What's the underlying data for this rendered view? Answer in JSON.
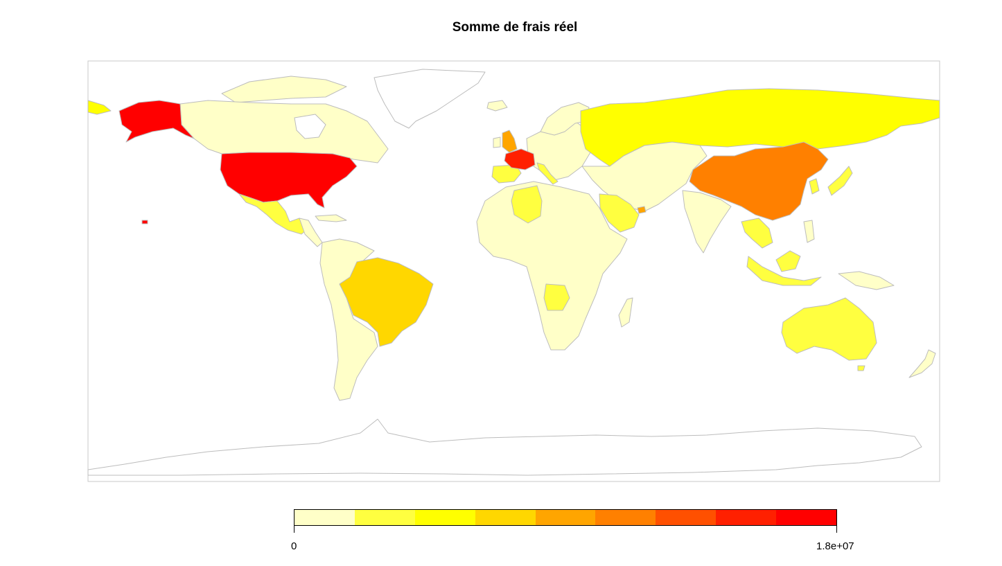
{
  "title": "Somme de frais réel",
  "legend": {
    "min_label": "0",
    "max_label": "1.8e+07",
    "colors": [
      "#FFFFC8",
      "#FFFF40",
      "#FFFF00",
      "#FFD700",
      "#FFA500",
      "#FF8000",
      "#FF5000",
      "#FF2000",
      "#FF0000"
    ]
  },
  "chart_data": {
    "type": "choropleth",
    "title": "Somme de frais réel",
    "value_range": [
      0,
      18000000
    ],
    "legend_placement": "bottom",
    "regions": [
      {
        "region": "United States",
        "bin": 8
      },
      {
        "region": "France",
        "bin": 7
      },
      {
        "region": "China",
        "bin": 5
      },
      {
        "region": "United Kingdom",
        "bin": 4
      },
      {
        "region": "Brazil",
        "bin": 3
      },
      {
        "region": "Russia",
        "bin": 2
      },
      {
        "region": "Mexico",
        "bin": 1
      },
      {
        "region": "Australia",
        "bin": 1
      },
      {
        "region": "Algeria",
        "bin": 1
      },
      {
        "region": "Saudi Arabia",
        "bin": 1
      },
      {
        "region": "United Arab Emirates",
        "bin": 4
      },
      {
        "region": "Canada",
        "bin": 0
      },
      {
        "region": "Africa (other)",
        "bin": 0
      }
    ]
  }
}
